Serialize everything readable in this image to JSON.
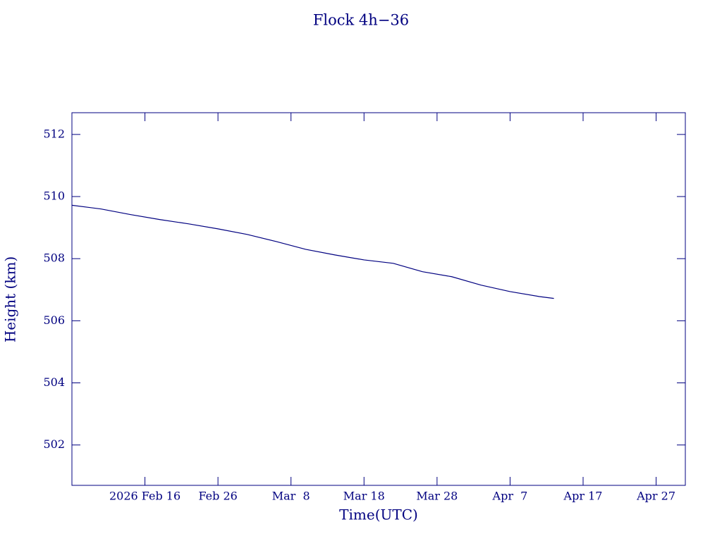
{
  "chart_data": {
    "type": "line",
    "title": "Flock 4h−36",
    "xlabel": "Time(UTC)",
    "ylabel": "Height (km)",
    "x": [
      "2026-02-06",
      "2026-02-10",
      "2026-02-14",
      "2026-02-18",
      "2026-02-22",
      "2026-02-26",
      "2026-03-02",
      "2026-03-06",
      "2026-03-10",
      "2026-03-14",
      "2026-03-18",
      "2026-03-22",
      "2026-03-26",
      "2026-03-30",
      "2026-04-03",
      "2026-04-07",
      "2026-04-11",
      "2026-04-13"
    ],
    "series": [
      {
        "name": "Height",
        "color": "#000080",
        "values": [
          509.72,
          509.6,
          509.42,
          509.26,
          509.12,
          508.96,
          508.78,
          508.55,
          508.3,
          508.12,
          507.96,
          507.85,
          507.58,
          507.42,
          507.15,
          506.94,
          506.78,
          506.72
        ]
      }
    ],
    "xlim": [
      "2026-02-06",
      "2026-05-01"
    ],
    "xticks": [
      {
        "value": "2026-02-16",
        "label": "2026 Feb 16"
      },
      {
        "value": "2026-02-26",
        "label": "Feb 26"
      },
      {
        "value": "2026-03-08",
        "label": "Mar  8"
      },
      {
        "value": "2026-03-18",
        "label": "Mar 18"
      },
      {
        "value": "2026-03-28",
        "label": "Mar 28"
      },
      {
        "value": "2026-04-07",
        "label": "Apr  7"
      },
      {
        "value": "2026-04-17",
        "label": "Apr 17"
      },
      {
        "value": "2026-04-27",
        "label": "Apr 27"
      }
    ],
    "ylim": [
      500.7,
      512.7
    ],
    "yticks": [
      502,
      504,
      506,
      508,
      510,
      512
    ]
  }
}
